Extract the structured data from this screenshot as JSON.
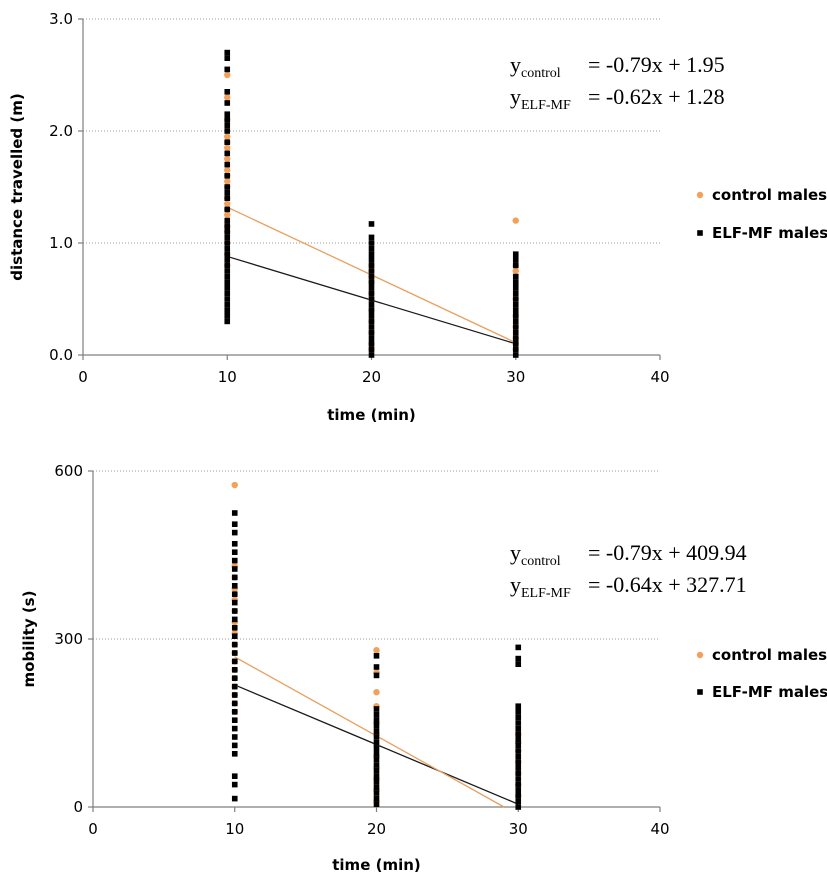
{
  "colors": {
    "control": "#F2A05A",
    "elf": "#000000",
    "grid": "#999999",
    "axis": "#7f7f7f",
    "control_line": "#E8A060",
    "elf_line": "#1a1a1a"
  },
  "chart_data": [
    {
      "type": "scatter",
      "xlabel": "time (min)",
      "ylabel": "distance travelled (m)",
      "xlim": [
        0,
        40
      ],
      "ylim": [
        0,
        3.0
      ],
      "xticks": [
        0,
        10,
        20,
        30,
        40
      ],
      "yticks": [
        0.0,
        1.0,
        2.0,
        3.0
      ],
      "xtick_labels": [
        "0",
        "10",
        "20",
        "30",
        "40"
      ],
      "ytick_labels": [
        "0.0",
        "1.0",
        "2.0",
        "3.0"
      ],
      "grid": "horizontal dotted",
      "legend": [
        "control males",
        "ELF-MF males"
      ],
      "legend_position": "right",
      "equations": [
        {
          "sym": "y",
          "sub": "control",
          "rest": "= -0.79x + 1.95"
        },
        {
          "sym": "y",
          "sub": "ELF-MF",
          "rest": "= -0.62x + 1.28"
        }
      ],
      "series": [
        {
          "name": "control males",
          "color": "#F2A05A",
          "marker": "circle",
          "points": [
            [
              10,
              2.5
            ],
            [
              10,
              2.3
            ],
            [
              10,
              2.1
            ],
            [
              10,
              1.95
            ],
            [
              10,
              1.9
            ],
            [
              10,
              1.85
            ],
            [
              10,
              1.75
            ],
            [
              10,
              1.65
            ],
            [
              10,
              1.6
            ],
            [
              10,
              1.55
            ],
            [
              10,
              1.5
            ],
            [
              10,
              1.4
            ],
            [
              10,
              1.35
            ],
            [
              10,
              1.3
            ],
            [
              10,
              1.25
            ],
            [
              10,
              1.15
            ],
            [
              10,
              1.1
            ],
            [
              10,
              1.0
            ],
            [
              10,
              0.9
            ],
            [
              10,
              0.8
            ],
            [
              20,
              0.8
            ],
            [
              20,
              0.75
            ],
            [
              20,
              0.7
            ],
            [
              20,
              0.65
            ],
            [
              20,
              0.55
            ],
            [
              20,
              0.5
            ],
            [
              20,
              0.4
            ],
            [
              20,
              0.3
            ],
            [
              20,
              0.2
            ],
            [
              20,
              0.1
            ],
            [
              20,
              0.05
            ],
            [
              30,
              1.2
            ],
            [
              30,
              0.8
            ],
            [
              30,
              0.75
            ],
            [
              30,
              0.5
            ],
            [
              30,
              0.35
            ],
            [
              30,
              0.25
            ],
            [
              30,
              0.15
            ],
            [
              30,
              0.1
            ],
            [
              30,
              0.05
            ]
          ],
          "trendline": {
            "x": [
              10,
              30
            ],
            "y": [
              1.32,
              0.11
            ]
          }
        },
        {
          "name": "ELF-MF males",
          "color": "#000000",
          "marker": "square",
          "points": [
            [
              10,
              2.7
            ],
            [
              10,
              2.65
            ],
            [
              10,
              2.55
            ],
            [
              10,
              2.35
            ],
            [
              10,
              2.25
            ],
            [
              10,
              2.15
            ],
            [
              10,
              2.1
            ],
            [
              10,
              2.05
            ],
            [
              10,
              2.0
            ],
            [
              10,
              1.9
            ],
            [
              10,
              1.8
            ],
            [
              10,
              1.7
            ],
            [
              10,
              1.6
            ],
            [
              10,
              1.5
            ],
            [
              10,
              1.45
            ],
            [
              10,
              1.4
            ],
            [
              10,
              1.3
            ],
            [
              10,
              1.2
            ],
            [
              10,
              1.15
            ],
            [
              10,
              1.1
            ],
            [
              10,
              1.05
            ],
            [
              10,
              1.0
            ],
            [
              10,
              0.95
            ],
            [
              10,
              0.9
            ],
            [
              10,
              0.85
            ],
            [
              10,
              0.8
            ],
            [
              10,
              0.75
            ],
            [
              10,
              0.7
            ],
            [
              10,
              0.65
            ],
            [
              10,
              0.6
            ],
            [
              10,
              0.55
            ],
            [
              10,
              0.5
            ],
            [
              10,
              0.45
            ],
            [
              10,
              0.4
            ],
            [
              10,
              0.35
            ],
            [
              10,
              0.3
            ],
            [
              20,
              1.17
            ],
            [
              20,
              1.05
            ],
            [
              20,
              1.0
            ],
            [
              20,
              0.95
            ],
            [
              20,
              0.9
            ],
            [
              20,
              0.85
            ],
            [
              20,
              0.8
            ],
            [
              20,
              0.75
            ],
            [
              20,
              0.7
            ],
            [
              20,
              0.65
            ],
            [
              20,
              0.6
            ],
            [
              20,
              0.55
            ],
            [
              20,
              0.5
            ],
            [
              20,
              0.45
            ],
            [
              20,
              0.4
            ],
            [
              20,
              0.35
            ],
            [
              20,
              0.3
            ],
            [
              20,
              0.25
            ],
            [
              20,
              0.2
            ],
            [
              20,
              0.15
            ],
            [
              20,
              0.1
            ],
            [
              20,
              0.05
            ],
            [
              20,
              0.0
            ],
            [
              30,
              0.9
            ],
            [
              30,
              0.85
            ],
            [
              30,
              0.8
            ],
            [
              30,
              0.7
            ],
            [
              30,
              0.65
            ],
            [
              30,
              0.6
            ],
            [
              30,
              0.55
            ],
            [
              30,
              0.5
            ],
            [
              30,
              0.45
            ],
            [
              30,
              0.4
            ],
            [
              30,
              0.35
            ],
            [
              30,
              0.3
            ],
            [
              30,
              0.25
            ],
            [
              30,
              0.2
            ],
            [
              30,
              0.15
            ],
            [
              30,
              0.1
            ],
            [
              30,
              0.05
            ],
            [
              30,
              0.0
            ]
          ],
          "trendline": {
            "x": [
              10,
              30
            ],
            "y": [
              0.88,
              0.1
            ]
          }
        }
      ]
    },
    {
      "type": "scatter",
      "xlabel": "time (min)",
      "ylabel": "mobility (s)",
      "xlim": [
        0,
        40
      ],
      "ylim": [
        0,
        600
      ],
      "xticks": [
        0,
        10,
        20,
        30,
        40
      ],
      "yticks": [
        0,
        300,
        600
      ],
      "xtick_labels": [
        "0",
        "10",
        "20",
        "30",
        "40"
      ],
      "ytick_labels": [
        "0",
        "300",
        "600"
      ],
      "grid": "horizontal dotted",
      "legend": [
        "control males",
        "ELF-MF males"
      ],
      "legend_position": "right",
      "equations": [
        {
          "sym": "y",
          "sub": "control",
          "rest": "= -0.79x + 409.94"
        },
        {
          "sym": "y",
          "sub": "ELF-MF",
          "rest": "= -0.64x + 327.71"
        }
      ],
      "series": [
        {
          "name": "control males",
          "color": "#F2A05A",
          "marker": "circle",
          "points": [
            [
              10,
              575
            ],
            [
              10,
              430
            ],
            [
              10,
              410
            ],
            [
              10,
              390
            ],
            [
              10,
              370
            ],
            [
              10,
              350
            ],
            [
              10,
              330
            ],
            [
              10,
              310
            ],
            [
              10,
              290
            ],
            [
              10,
              275
            ],
            [
              10,
              260
            ],
            [
              10,
              245
            ],
            [
              10,
              230
            ],
            [
              10,
              215
            ],
            [
              10,
              200
            ],
            [
              10,
              185
            ],
            [
              10,
              170
            ],
            [
              20,
              280
            ],
            [
              20,
              240
            ],
            [
              20,
              205
            ],
            [
              20,
              180
            ],
            [
              20,
              150
            ],
            [
              20,
              130
            ],
            [
              20,
              110
            ],
            [
              20,
              90
            ],
            [
              20,
              70
            ],
            [
              20,
              50
            ],
            [
              20,
              30
            ],
            [
              20,
              10
            ],
            [
              30,
              130
            ],
            [
              30,
              115
            ],
            [
              30,
              100
            ],
            [
              30,
              80
            ],
            [
              30,
              60
            ],
            [
              30,
              40
            ],
            [
              30,
              20
            ]
          ],
          "trendline": {
            "x": [
              10,
              29
            ],
            "y": [
              268,
              0
            ]
          }
        },
        {
          "name": "ELF-MF males",
          "color": "#000000",
          "marker": "square",
          "points": [
            [
              10,
              525
            ],
            [
              10,
              505
            ],
            [
              10,
              490
            ],
            [
              10,
              470
            ],
            [
              10,
              455
            ],
            [
              10,
              440
            ],
            [
              10,
              425
            ],
            [
              10,
              410
            ],
            [
              10,
              395
            ],
            [
              10,
              380
            ],
            [
              10,
              365
            ],
            [
              10,
              350
            ],
            [
              10,
              335
            ],
            [
              10,
              320
            ],
            [
              10,
              305
            ],
            [
              10,
              290
            ],
            [
              10,
              275
            ],
            [
              10,
              260
            ],
            [
              10,
              245
            ],
            [
              10,
              230
            ],
            [
              10,
              215
            ],
            [
              10,
              200
            ],
            [
              10,
              185
            ],
            [
              10,
              170
            ],
            [
              10,
              155
            ],
            [
              10,
              140
            ],
            [
              10,
              125
            ],
            [
              10,
              110
            ],
            [
              10,
              95
            ],
            [
              10,
              55
            ],
            [
              10,
              40
            ],
            [
              10,
              15
            ],
            [
              20,
              270
            ],
            [
              20,
              250
            ],
            [
              20,
              235
            ],
            [
              20,
              175
            ],
            [
              20,
              165
            ],
            [
              20,
              155
            ],
            [
              20,
              145
            ],
            [
              20,
              135
            ],
            [
              20,
              125
            ],
            [
              20,
              115
            ],
            [
              20,
              105
            ],
            [
              20,
              95
            ],
            [
              20,
              85
            ],
            [
              20,
              75
            ],
            [
              20,
              65
            ],
            [
              20,
              55
            ],
            [
              20,
              45
            ],
            [
              20,
              35
            ],
            [
              20,
              25
            ],
            [
              20,
              15
            ],
            [
              20,
              5
            ],
            [
              30,
              285
            ],
            [
              30,
              265
            ],
            [
              30,
              255
            ],
            [
              30,
              180
            ],
            [
              30,
              170
            ],
            [
              30,
              160
            ],
            [
              30,
              150
            ],
            [
              30,
              140
            ],
            [
              30,
              130
            ],
            [
              30,
              120
            ],
            [
              30,
              110
            ],
            [
              30,
              100
            ],
            [
              30,
              90
            ],
            [
              30,
              80
            ],
            [
              30,
              70
            ],
            [
              30,
              60
            ],
            [
              30,
              50
            ],
            [
              30,
              40
            ],
            [
              30,
              30
            ],
            [
              30,
              20
            ],
            [
              30,
              10
            ],
            [
              30,
              0
            ]
          ],
          "trendline": {
            "x": [
              10,
              30
            ],
            "y": [
              218,
              5
            ]
          }
        }
      ]
    }
  ]
}
